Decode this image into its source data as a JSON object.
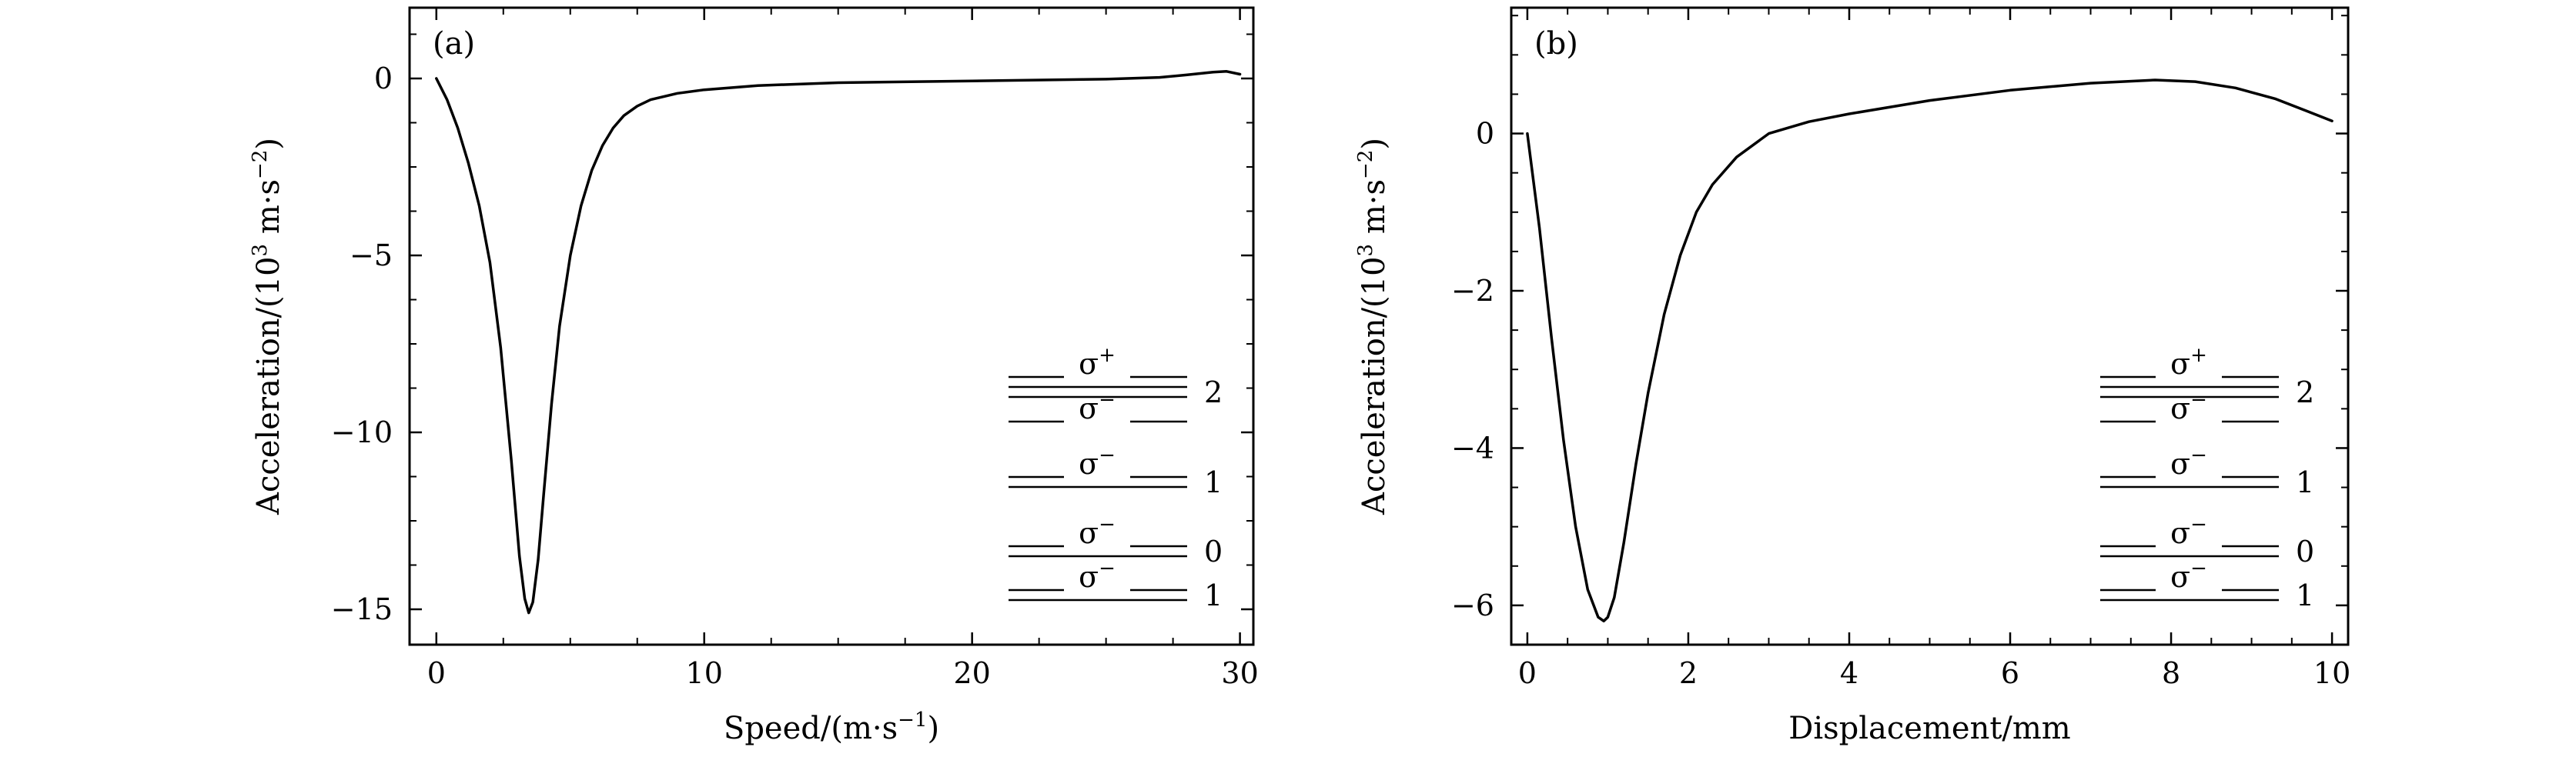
{
  "chart_data": [
    {
      "type": "line",
      "panel_label": "(a)",
      "xlabel": {
        "prefix": "Speed/(m·s",
        "sup": "−1",
        "suffix": ")"
      },
      "ylabel": {
        "prefix": "Acceleration/(10",
        "sup1": "3",
        "mid": " m·s",
        "sup2": "−2",
        "suffix": ")"
      },
      "xlim": [
        -1,
        30.5
      ],
      "ylim": [
        -16,
        2
      ],
      "xticks": [
        0,
        10,
        20,
        30
      ],
      "xtick_labels": [
        "0",
        "10",
        "20",
        "30"
      ],
      "yticks": [
        0,
        -5,
        -10,
        -15
      ],
      "ytick_labels": [
        "0",
        "−5",
        "−10",
        "−15"
      ],
      "grid": false,
      "series": [
        {
          "x": [
            0,
            0.4,
            0.8,
            1.2,
            1.6,
            2.0,
            2.4,
            2.8,
            3.1,
            3.3,
            3.45,
            3.6,
            3.8,
            4.0,
            4.3,
            4.6,
            5.0,
            5.4,
            5.8,
            6.2,
            6.6,
            7.0,
            7.5,
            8.0,
            9.0,
            10.0,
            12.0,
            15.0,
            20.0,
            25.0,
            27.0,
            28.0,
            29.0,
            29.5,
            30.0
          ],
          "y": [
            0,
            -0.6,
            -1.4,
            -2.4,
            -3.6,
            -5.2,
            -7.6,
            -10.8,
            -13.5,
            -14.7,
            -15.1,
            -14.8,
            -13.6,
            -11.8,
            -9.2,
            -7.0,
            -5.0,
            -3.6,
            -2.6,
            -1.9,
            -1.4,
            -1.05,
            -0.78,
            -0.6,
            -0.42,
            -0.32,
            -0.2,
            -0.12,
            -0.07,
            -0.02,
            0.03,
            0.1,
            0.18,
            0.2,
            0.12
          ]
        }
      ],
      "legend": {
        "placement": "lower-right",
        "entries": [
          {
            "label": "σ",
            "sup": "+",
            "number": "2",
            "rows": 3
          },
          {
            "label": "σ",
            "sup": "−",
            "number": "",
            "rows": 0
          },
          {
            "label": "σ",
            "sup": "−",
            "number": "1",
            "rows": 2
          },
          {
            "label": "σ",
            "sup": "−",
            "number": "0",
            "rows": 2
          },
          {
            "label": "σ",
            "sup": "−",
            "number": "1",
            "rows": 2
          }
        ]
      }
    },
    {
      "type": "line",
      "panel_label": "(b)",
      "xlabel": {
        "prefix": "Displacement/mm",
        "sup": "",
        "suffix": ""
      },
      "ylabel": {
        "prefix": "Acceleration/(10",
        "sup1": "3",
        "mid": " m·s",
        "sup2": "−2",
        "suffix": ")"
      },
      "xlim": [
        -0.2,
        10.2
      ],
      "ylim": [
        -6.5,
        1.6
      ],
      "xticks": [
        0,
        2,
        4,
        6,
        8,
        10
      ],
      "xtick_labels": [
        "0",
        "2",
        "4",
        "6",
        "8",
        "10"
      ],
      "yticks": [
        0,
        -2,
        -4,
        -6
      ],
      "ytick_labels": [
        "0",
        "−2",
        "−4",
        "−6"
      ],
      "grid": false,
      "series": [
        {
          "x": [
            0,
            0.15,
            0.3,
            0.45,
            0.6,
            0.75,
            0.88,
            0.95,
            1.0,
            1.08,
            1.2,
            1.35,
            1.5,
            1.7,
            1.9,
            2.1,
            2.3,
            2.6,
            3.0,
            3.5,
            4.0,
            5.0,
            6.0,
            7.0,
            7.8,
            8.3,
            8.8,
            9.3,
            9.7,
            10.0
          ],
          "y": [
            0,
            -1.2,
            -2.6,
            -3.9,
            -5.0,
            -5.8,
            -6.15,
            -6.2,
            -6.15,
            -5.9,
            -5.2,
            -4.2,
            -3.3,
            -2.3,
            -1.55,
            -1.0,
            -0.65,
            -0.3,
            0.0,
            0.15,
            0.25,
            0.42,
            0.55,
            0.64,
            0.68,
            0.66,
            0.58,
            0.44,
            0.28,
            0.16
          ]
        }
      ],
      "legend": {
        "placement": "lower-right",
        "entries": [
          {
            "label": "σ",
            "sup": "+",
            "number": "2",
            "rows": 3
          },
          {
            "label": "σ",
            "sup": "−",
            "number": "",
            "rows": 0
          },
          {
            "label": "σ",
            "sup": "−",
            "number": "1",
            "rows": 2
          },
          {
            "label": "σ",
            "sup": "−",
            "number": "0",
            "rows": 2
          },
          {
            "label": "σ",
            "sup": "−",
            "number": "1",
            "rows": 2
          }
        ]
      }
    }
  ]
}
